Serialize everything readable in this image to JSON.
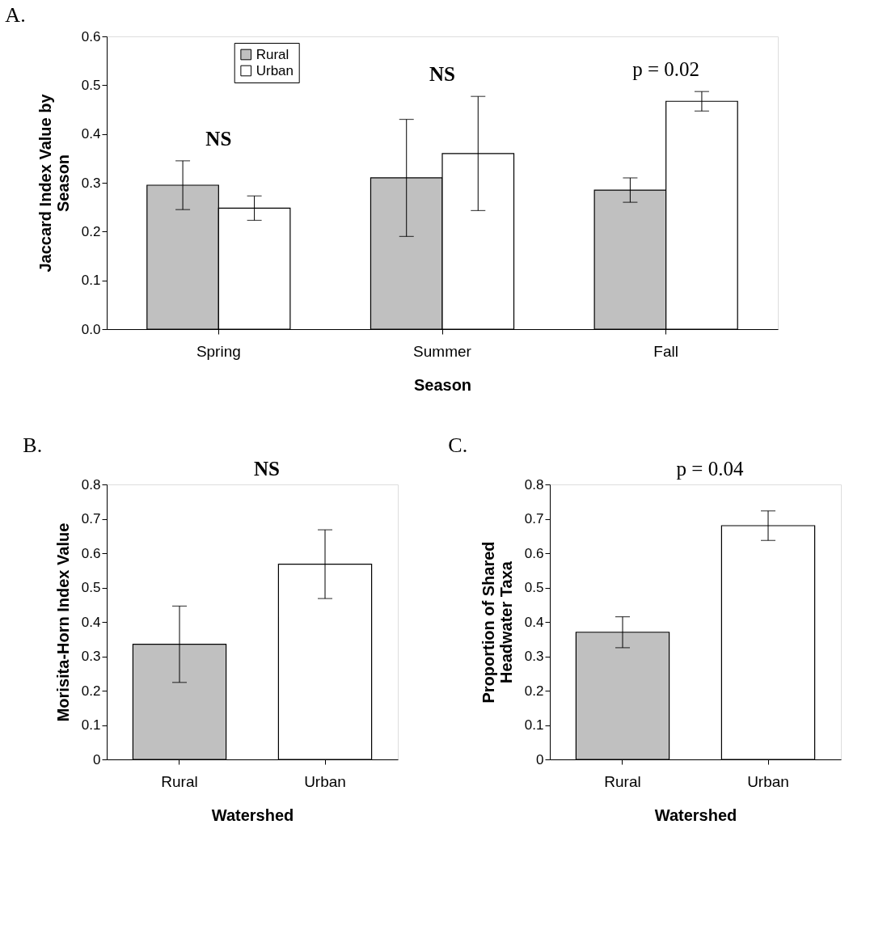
{
  "chart_data": [
    {
      "type": "bar",
      "title": "A.",
      "xlabel": "Season",
      "ylabel": "Jaccard Index Value by Season",
      "categories": [
        "Spring",
        "Summer",
        "Fall"
      ],
      "series": [
        {
          "name": "Rural",
          "color": "#c0c0c0",
          "values": [
            0.295,
            0.31,
            0.285
          ],
          "errors": [
            0.05,
            0.12,
            0.025
          ]
        },
        {
          "name": "Urban",
          "color": "#ffffff",
          "values": [
            0.248,
            0.36,
            0.467
          ],
          "errors": [
            0.025,
            0.117,
            0.02
          ]
        }
      ],
      "ylim": [
        0,
        0.6
      ],
      "yticks": [
        {
          "value": 0,
          "label": "0.0"
        },
        0.1,
        0.2,
        0.3,
        0.4,
        0.5,
        0.6
      ],
      "grid": false,
      "legend": "top left",
      "annotations": [
        "NS",
        "NS",
        "p = 0.02"
      ]
    },
    {
      "type": "bar",
      "title": "B.",
      "xlabel": "Watershed",
      "ylabel": "Morisita-Horn Index Value",
      "categories": [
        "Rural",
        "Urban"
      ],
      "values": [
        0.335,
        0.568
      ],
      "colors": [
        "#c0c0c0",
        "#ffffff"
      ],
      "errors": [
        0.111,
        0.1
      ],
      "ylim": [
        0,
        0.8
      ],
      "yticks": [
        0,
        0.1,
        0.2,
        0.3,
        0.4,
        0.5,
        0.6,
        0.7,
        0.8
      ],
      "grid": false,
      "annotations": [
        "NS"
      ]
    },
    {
      "type": "bar",
      "title": "C.",
      "xlabel": "Watershed",
      "ylabel": "Proportion of Shared Headwater Taxa",
      "categories": [
        "Rural",
        "Urban"
      ],
      "values": [
        0.37,
        0.68
      ],
      "colors": [
        "#c0c0c0",
        "#ffffff"
      ],
      "errors": [
        0.045,
        0.043
      ],
      "ylim": [
        0,
        0.8
      ],
      "yticks": [
        0,
        0.1,
        0.2,
        0.3,
        0.4,
        0.5,
        0.6,
        0.7,
        0.8
      ],
      "grid": false,
      "annotations": [
        "p = 0.04"
      ]
    }
  ]
}
